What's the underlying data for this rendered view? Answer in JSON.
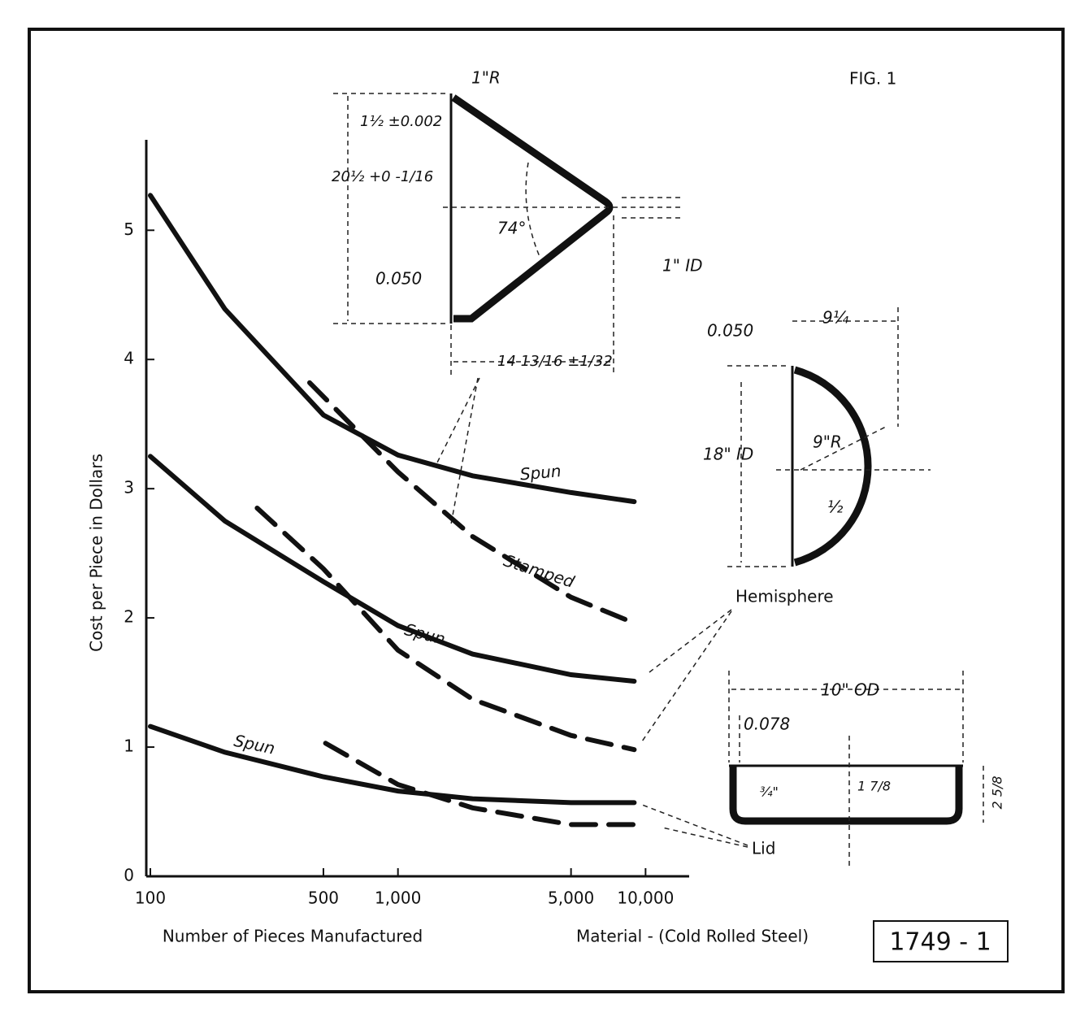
{
  "chart_data": {
    "type": "line",
    "title": "FIG. 1",
    "y_label": "Cost per Piece in Dollars",
    "x_label": "Number of Pieces Manufactured",
    "note": "Material - (Cold Rolled Steel)",
    "figure_number": "1749 - 1",
    "log_x": true,
    "xlim": [
      100,
      15000
    ],
    "xticks": [
      100,
      500,
      {
        "value": 1000,
        "label": "1,000"
      },
      {
        "value": 5000,
        "label": "5,000"
      },
      {
        "value": 10000,
        "label": "10,000"
      }
    ],
    "ylim": [
      0,
      5.7
    ],
    "yticks": [
      0,
      1,
      2,
      3,
      4,
      5
    ],
    "series": [
      {
        "name": "Spun",
        "color": "#111",
        "dashed": false,
        "x": [
          100,
          200,
          500,
          1000,
          2000,
          5000,
          9000
        ],
        "values": [
          5.27,
          4.39,
          3.57,
          3.26,
          3.1,
          2.97,
          2.9
        ]
      },
      {
        "name": "Stamped",
        "color": "#111",
        "dashed": true,
        "x": [
          440,
          1000,
          2000,
          5000,
          9000
        ],
        "values": [
          3.82,
          3.13,
          2.63,
          2.16,
          1.96
        ]
      },
      {
        "name": "Spun",
        "color": "#111",
        "dashed": false,
        "x": [
          100,
          200,
          500,
          1000,
          2000,
          5000,
          9000
        ],
        "values": [
          3.25,
          2.75,
          2.28,
          1.94,
          1.72,
          1.56,
          1.51
        ]
      },
      {
        "color": "#111",
        "dashed": true,
        "x": [
          270,
          500,
          1000,
          2000,
          5000,
          9000
        ],
        "values": [
          2.85,
          2.38,
          1.75,
          1.37,
          1.09,
          0.98
        ]
      },
      {
        "name": "Spun",
        "color": "#111",
        "dashed": false,
        "x": [
          100,
          200,
          500,
          1000,
          2000,
          5000,
          9000
        ],
        "values": [
          1.16,
          0.96,
          0.77,
          0.66,
          0.6,
          0.57,
          0.57
        ]
      },
      {
        "color": "#111",
        "dashed": true,
        "x": [
          510,
          1000,
          2000,
          5000,
          9000
        ],
        "values": [
          1.03,
          0.71,
          0.53,
          0.4,
          0.4
        ]
      }
    ],
    "annotations": [
      "1\"R",
      "1½ ±0.002",
      "20½ +0 -1/16",
      "74°",
      "0.050",
      "14 13/16 ±1/32",
      "1\" ID",
      "0.050",
      "9¼",
      "18\" ID",
      "9\"R",
      "½",
      "Hemisphere",
      "10\" OD",
      "0.078",
      "¾\"",
      "1 7/8",
      "2 5/8",
      "Lid"
    ]
  }
}
